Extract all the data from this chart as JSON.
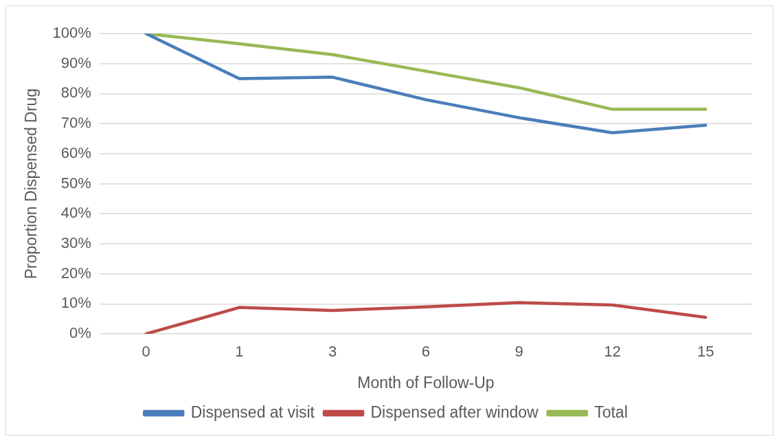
{
  "chart_data": {
    "type": "line",
    "xlabel": "Month of Follow-Up",
    "ylabel": "Proportion Dispensed Drug",
    "categories": [
      "0",
      "1",
      "3",
      "6",
      "9",
      "12",
      "15"
    ],
    "series": [
      {
        "name": "Dispensed at visit",
        "color": "#4a7ebb",
        "values": [
          100,
          85,
          85.5,
          78,
          72,
          67,
          69.5
        ]
      },
      {
        "name": "Dispensed after window",
        "color": "#be4b48",
        "values": [
          0,
          8.8,
          7.8,
          9,
          10.4,
          9.6,
          5.5
        ]
      },
      {
        "name": "Total",
        "color": "#98b954",
        "values": [
          100,
          96.6,
          93,
          87.5,
          82,
          74.8,
          74.8
        ]
      }
    ],
    "ylim": [
      0,
      100
    ],
    "yticks": [
      {
        "value": 0,
        "label": "0%"
      },
      {
        "value": 10,
        "label": "10%"
      },
      {
        "value": 20,
        "label": "20%"
      },
      {
        "value": 30,
        "label": "30%"
      },
      {
        "value": 40,
        "label": "40%"
      },
      {
        "value": 50,
        "label": "50%"
      },
      {
        "value": 60,
        "label": "60%"
      },
      {
        "value": 70,
        "label": "70%"
      },
      {
        "value": 80,
        "label": "80%"
      },
      {
        "value": 90,
        "label": "90%"
      },
      {
        "value": 100,
        "label": "100%"
      }
    ],
    "grid": "y",
    "legend": "bottom",
    "marker": "none",
    "line_style": "solid"
  }
}
